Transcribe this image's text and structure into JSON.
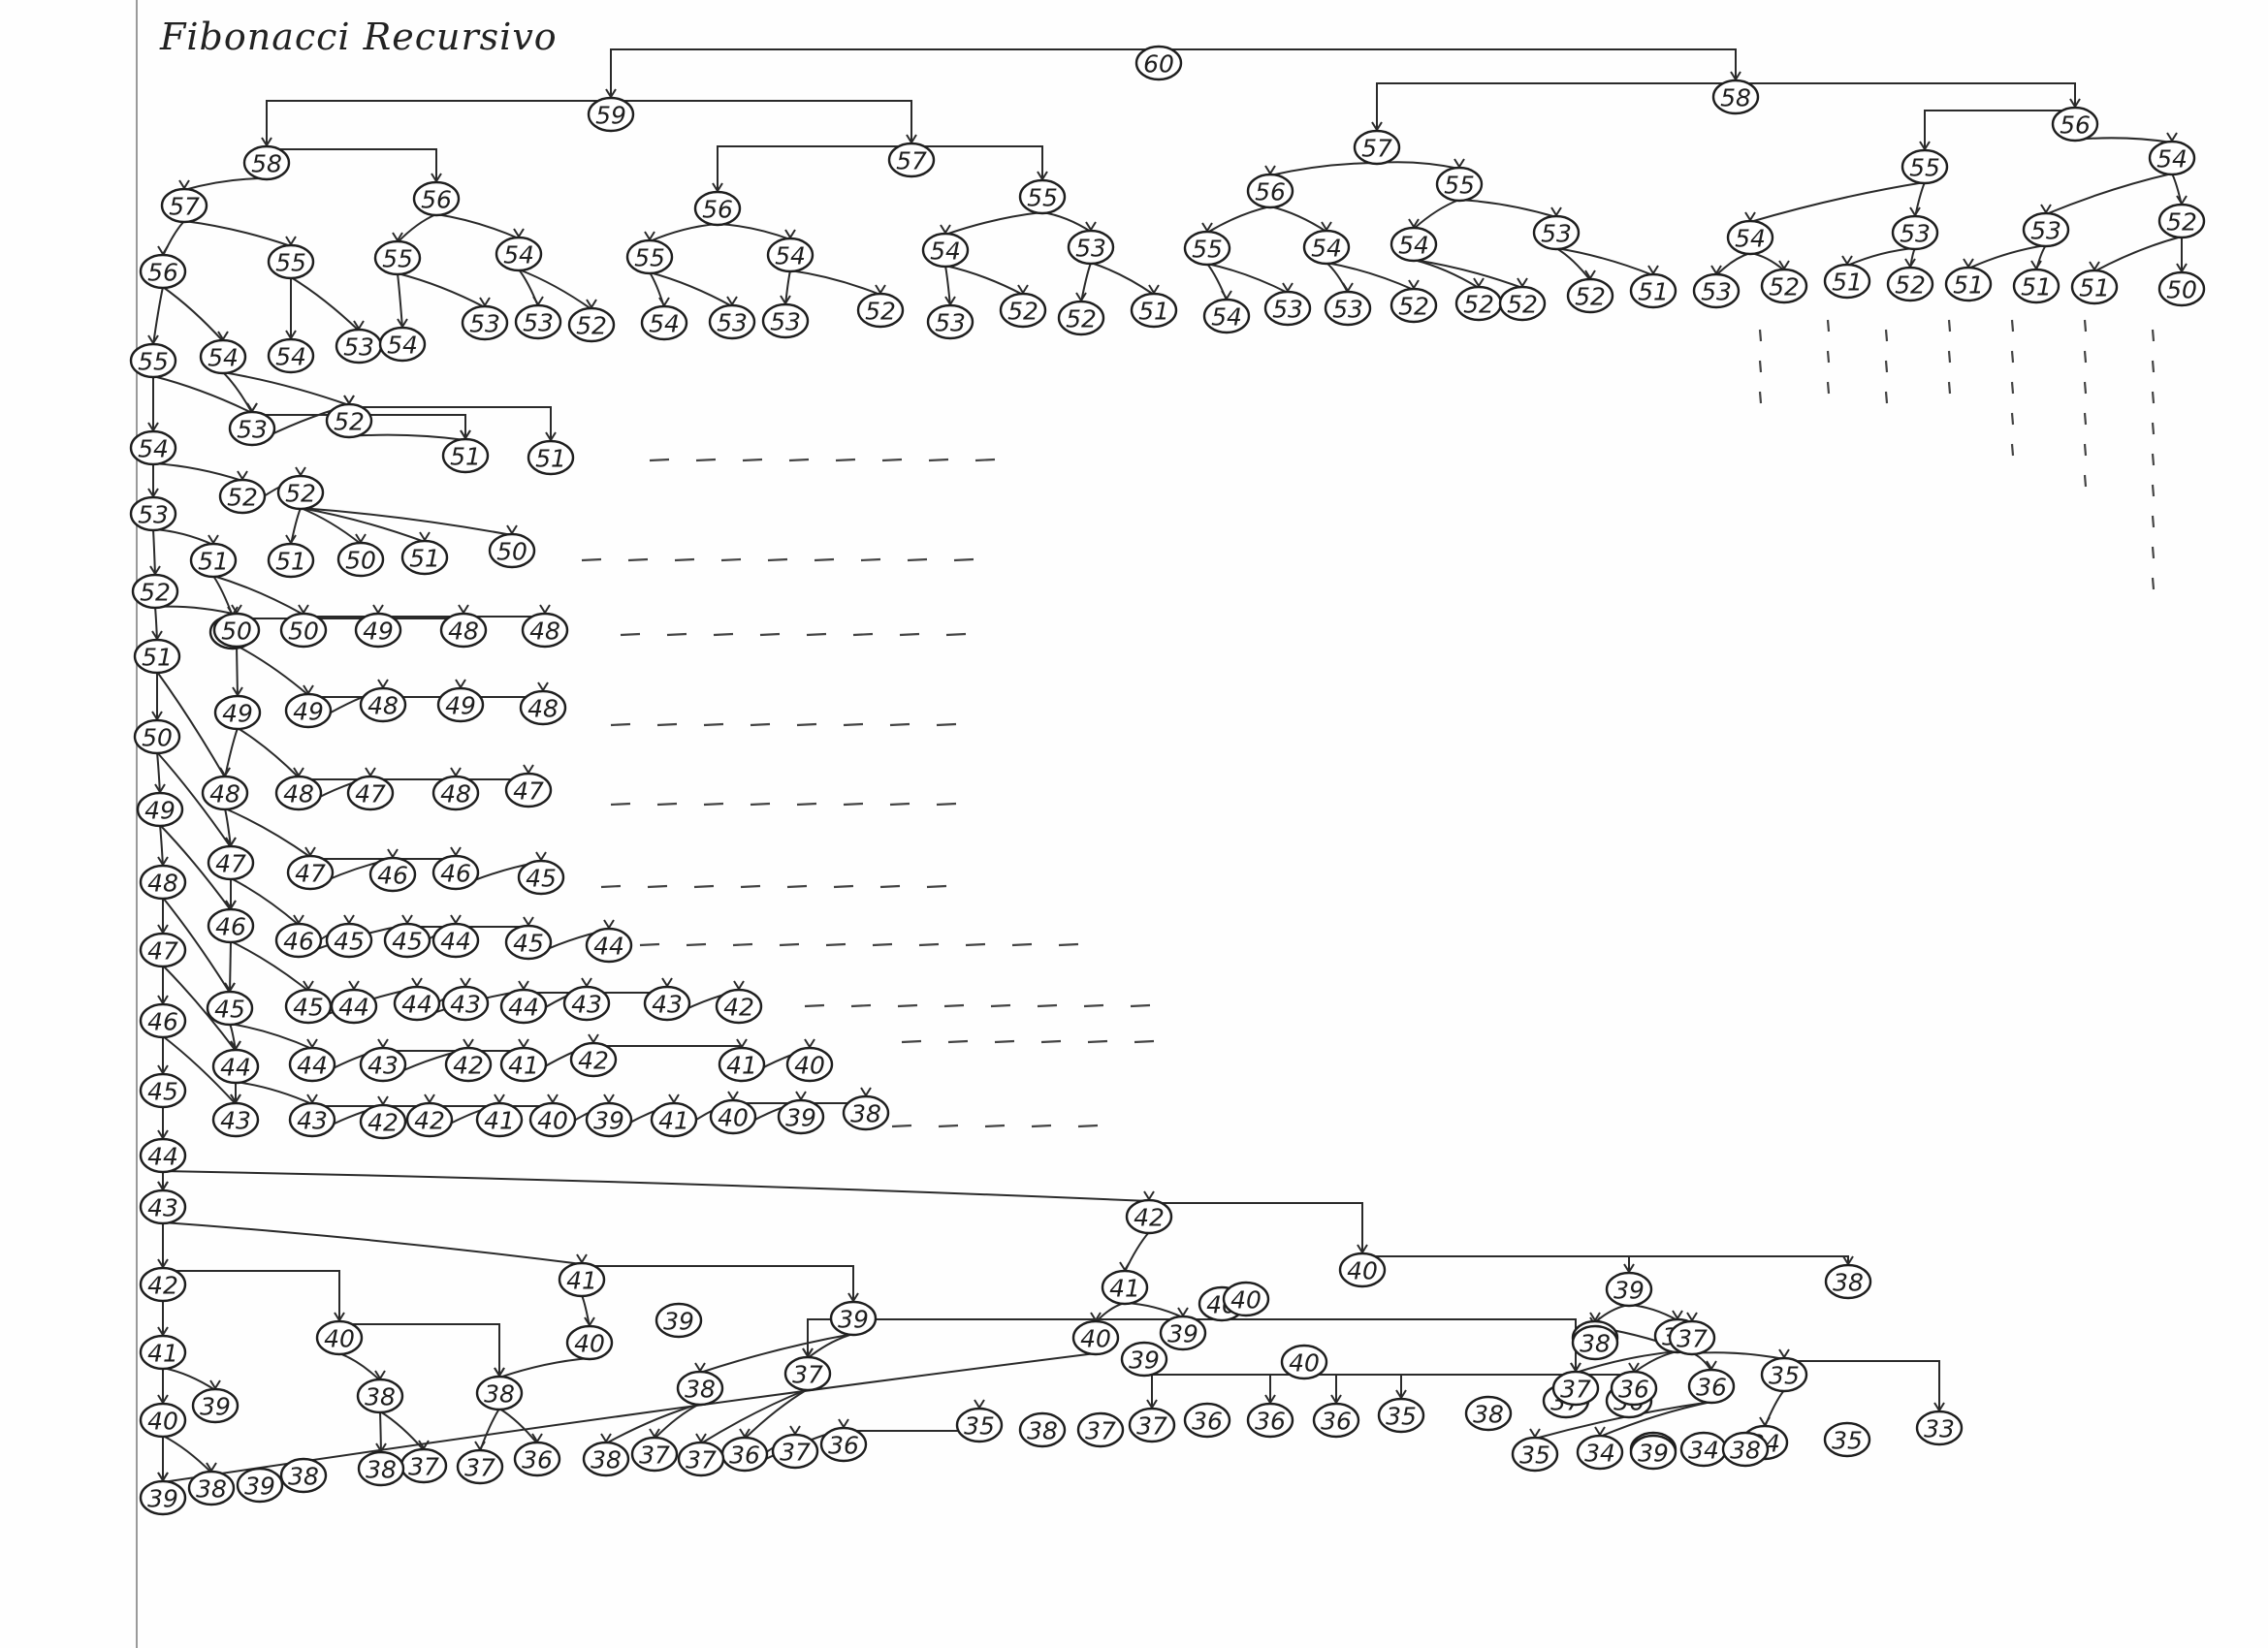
{
  "title": "Fibonacci Recursivo",
  "ink_color": "#1e1e1e",
  "paper_color": "#fefefe",
  "nodes": {
    "n60": "60",
    "n59": "59",
    "n58a": "58",
    "n58b": "58",
    "n57a": "57",
    "n57b": "57",
    "n56a": "56",
    "n56b": "56",
    "n56c": "56",
    "n56d": "56",
    "n57c": "57",
    "n56e": "56",
    "n55a": "55",
    "n57d": "57",
    "n56f": "56",
    "n55b": "55",
    "n54a": "54",
    "n55c": "55",
    "n54b": "54",
    "n54c": "54",
    "n53a": "53",
    "n56g": "56",
    "n55d": "55",
    "n54d": "54",
    "n53b": "53",
    "n55e": "55",
    "n54e": "54",
    "n53c": "53",
    "n52a": "52",
    "n55f": "55",
    "n54f": "54",
    "n55g": "55",
    "n54g": "54",
    "n53d": "53",
    "n54h": "54",
    "n53e": "53",
    "n52b": "52",
    "n53f": "53",
    "n52c": "52",
    "n51a": "51",
    "n53g": "53",
    "n54i": "54",
    "n53h": "53",
    "n52d": "52",
    "n54j": "54",
    "n53i": "53",
    "n52e": "52",
    "n54k": "54",
    "n53j": "53",
    "n52f": "52",
    "n52g": "52",
    "n53k": "53",
    "n54l": "54",
    "n53l": "53",
    "n52h": "52",
    "n53m": "53",
    "n52i": "52",
    "n52j": "52",
    "n51b": "51",
    "n54m": "54",
    "n53n": "53",
    "n53o": "53",
    "n52k": "52",
    "n53p": "53",
    "n52l": "52",
    "n52m": "52",
    "n51c": "51",
    "n53q": "53",
    "n52n": "52",
    "n52o": "52",
    "n51d": "51",
    "n52p": "52",
    "n51e": "51",
    "n51f": "51",
    "n50a": "50",
    "n55h": "55",
    "n54n": "54",
    "n54o": "54",
    "n53r": "53",
    "n52q": "52",
    "n51g": "51",
    "n51h": "51",
    "n50b": "50",
    "n53s": "53",
    "n52r": "52",
    "n52s": "52",
    "n51i": "51",
    "n51j": "51",
    "n50c": "50",
    "n51k": "51",
    "n50d": "50",
    "n52t": "52",
    "n50e": "50",
    "n50f": "50",
    "n49a": "49",
    "n48a": "48",
    "n48b": "48",
    "n51l": "51",
    "n49b": "49",
    "n49c": "49",
    "n48c": "48",
    "n49d": "49",
    "n48d": "48",
    "n50g": "50",
    "n48e": "48",
    "n48f": "48",
    "n47a": "47",
    "n48g": "48",
    "n47b": "47",
    "n49e": "49",
    "n47c": "47",
    "n47d": "47",
    "n46a": "46",
    "n46b": "46",
    "n45a": "45",
    "n48h": "48",
    "n46c": "46",
    "n46d": "46",
    "n45b": "45",
    "n45c": "45",
    "n44a": "44",
    "n45d": "45",
    "n44b": "44",
    "n47e": "47",
    "n45e": "45",
    "n45f": "45",
    "n44c": "44",
    "n44d": "44",
    "n43a": "43",
    "n44e": "44",
    "n43b": "43",
    "n43c": "43",
    "n42a": "42",
    "n46e": "46",
    "n44f": "44",
    "n44g": "44",
    "n43d": "43",
    "n42b": "42",
    "n41a": "41",
    "n42c": "42",
    "n41b": "41",
    "n40a": "40",
    "n45g": "45",
    "n43e": "43",
    "n43f": "43",
    "n42d": "42",
    "n42e": "42",
    "n41c": "41",
    "n40b": "40",
    "n39a": "39",
    "n41d": "41",
    "n40c": "40",
    "n39b": "39",
    "n38a": "38",
    "n44h": "44",
    "n43g": "43",
    "n42f": "42",
    "n42g": "42",
    "n41e": "41",
    "n40d": "40",
    "n41f": "41",
    "n40e": "40",
    "n39c": "39",
    "n38b": "38",
    "n38c": "38",
    "n37a": "37",
    "n36a": "36",
    "n36b": "36",
    "n35a": "35",
    "n42h": "42",
    "n41g": "41",
    "n40f": "40",
    "n39d": "39",
    "n41h": "41",
    "n40g": "40",
    "n39e": "39",
    "n40h": "40",
    "n39f": "39",
    "n38d": "38",
    "n39g": "39",
    "n38e": "38",
    "n37b": "37",
    "n40i": "40",
    "n39h": "39",
    "n38f": "38",
    "n38g": "38",
    "n37c": "37",
    "n37d": "37",
    "n36c": "36",
    "n35b": "35",
    "n39i": "39",
    "n38h": "38",
    "n37e": "37",
    "n37f": "37",
    "n36d": "36",
    "n36e": "36",
    "n35c": "35",
    "n38i": "38",
    "n37g": "37",
    "n36f": "36",
    "n40j": "40",
    "n39j": "39",
    "n38j": "38",
    "n38k": "38",
    "n37h": "37",
    "n37i": "37",
    "n36g": "36",
    "n38l": "38",
    "n37j": "37",
    "n37k": "37",
    "n36h": "36",
    "n36i": "36",
    "n35d": "35",
    "n35e": "35",
    "n34a": "34",
    "n35f": "35",
    "n34b": "34",
    "n34c": "34",
    "n33a": "33",
    "n38m": "38",
    "n39k": "39",
    "n38n": "38",
    "n40k": "40",
    "n39l": "39"
  }
}
